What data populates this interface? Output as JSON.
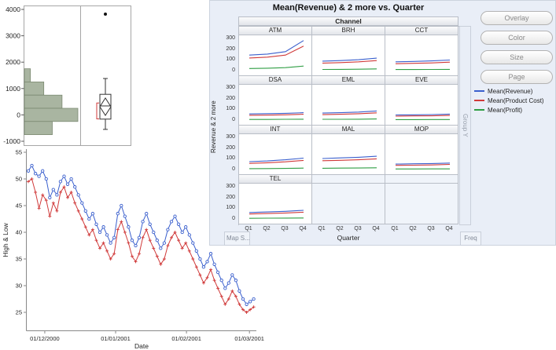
{
  "builder": {
    "buttons": [
      "Overlay",
      "Color",
      "Size",
      "Page"
    ],
    "group_y_label": "Group Y",
    "freq_label": "Freq",
    "map_shape_label": "Map S...",
    "background": "#e9eef7"
  },
  "chart_data": [
    {
      "id": "distribution-histogram-boxplot",
      "type": "bar",
      "orientation": "horizontal-histogram",
      "ylim": [
        -1000,
        4000
      ],
      "yticks": [
        4000,
        3000,
        2000,
        1000,
        0,
        -1000
      ],
      "bar_color": "#a9b5a1",
      "bar_border": "#78866e",
      "bins": [
        {
          "lo": 1250,
          "hi": 1750,
          "count": 10
        },
        {
          "lo": 750,
          "hi": 1250,
          "count": 32
        },
        {
          "lo": 250,
          "hi": 750,
          "count": 62
        },
        {
          "lo": -250,
          "hi": 250,
          "count": 88
        },
        {
          "lo": -750,
          "hi": -250,
          "count": 46
        }
      ],
      "boxplot": {
        "outlier": 3820,
        "whisker_top": 1380,
        "q3": 780,
        "median": 340,
        "diamond_mean": 310,
        "diamond_half": 330,
        "q1": -160,
        "whisker_bottom": -550,
        "shortest_half_bracket": {
          "top": 450,
          "bottom": -150,
          "color": "#d03a3a"
        }
      }
    },
    {
      "id": "high-low-time-series",
      "type": "line",
      "xlabel": "Date",
      "ylabel": "High & Low",
      "yticks": [
        55,
        50,
        45,
        40,
        35,
        30,
        25
      ],
      "ylim": [
        24,
        56
      ],
      "xticks": [
        {
          "label": "01/12/2000",
          "index": 4.6
        },
        {
          "label": "01/01/2001",
          "index": 24.4
        },
        {
          "label": "01/02/2001",
          "index": 44.2
        },
        {
          "label": "01/03/2001",
          "index": 61.8
        }
      ],
      "series": [
        {
          "name": "High",
          "color": "#3a5fcd",
          "marker": "circle",
          "values": [
            51.5,
            52.5,
            51.0,
            50.5,
            51.5,
            50.0,
            46.5,
            48.0,
            47.0,
            49.5,
            50.5,
            49.0,
            50.0,
            48.5,
            47.0,
            45.5,
            44.0,
            42.5,
            43.5,
            41.5,
            40.0,
            41.0,
            39.5,
            38.0,
            39.0,
            43.5,
            45.0,
            43.0,
            41.0,
            38.5,
            37.5,
            39.0,
            42.0,
            43.5,
            41.5,
            40.0,
            38.5,
            37.0,
            38.0,
            40.5,
            42.0,
            43.0,
            41.5,
            40.0,
            41.0,
            39.5,
            38.0,
            36.5,
            35.0,
            33.5,
            34.5,
            36.0,
            34.0,
            32.5,
            31.0,
            29.5,
            30.5,
            32.0,
            31.0,
            29.0,
            27.5,
            26.5,
            27.0,
            27.5
          ]
        },
        {
          "name": "Low",
          "color": "#d03a3a",
          "marker": "plus",
          "values": [
            49.5,
            50.0,
            47.5,
            44.5,
            47.0,
            46.0,
            43.0,
            45.5,
            44.0,
            47.5,
            48.5,
            46.5,
            47.5,
            45.5,
            44.0,
            42.5,
            41.0,
            39.5,
            40.5,
            38.5,
            37.0,
            38.0,
            36.5,
            35.0,
            36.0,
            40.5,
            42.0,
            40.0,
            38.0,
            35.5,
            34.5,
            36.0,
            39.0,
            40.5,
            38.5,
            37.0,
            35.5,
            34.0,
            35.0,
            37.5,
            39.0,
            40.0,
            38.5,
            37.0,
            38.0,
            36.5,
            35.0,
            33.5,
            32.0,
            30.5,
            31.5,
            33.0,
            31.0,
            29.5,
            28.0,
            26.5,
            27.5,
            29.0,
            28.0,
            26.5,
            25.5,
            25.0,
            25.5,
            26.0
          ]
        }
      ]
    },
    {
      "id": "trellis-means-by-quarter",
      "type": "line",
      "title": "Mean(Revenue) & 2 more vs. Quarter",
      "group_label": "Channel",
      "xlabel": "Quarter",
      "ylabel": "Revenue & 2 more",
      "categories": [
        "Q1",
        "Q2",
        "Q3",
        "Q4"
      ],
      "yticks": [
        300,
        200,
        100,
        0
      ],
      "ylim": [
        -40,
        340
      ],
      "legend": [
        {
          "label": "Mean(Revenue)",
          "color": "#3a5fcd"
        },
        {
          "label": "Mean(Product Cost)",
          "color": "#d03a3a"
        },
        {
          "label": "Mean(Profit)",
          "color": "#2f9e44"
        }
      ],
      "panels": [
        {
          "channel": "ATM",
          "series": [
            [
              152,
              162,
              185,
              290
            ],
            [
              125,
              133,
              152,
              238
            ],
            [
              25,
              28,
              33,
              48
            ]
          ]
        },
        {
          "channel": "BRH",
          "series": [
            [
              95,
              100,
              108,
              123
            ],
            [
              76,
              81,
              88,
              100
            ],
            [
              16,
              17,
              18,
              21
            ]
          ]
        },
        {
          "channel": "CCT",
          "series": [
            [
              88,
              92,
              97,
              105
            ],
            [
              70,
              74,
              78,
              85
            ],
            [
              15,
              15,
              16,
              17
            ]
          ]
        },
        {
          "channel": "DSA",
          "series": [
            [
              63,
              66,
              69,
              75
            ],
            [
              50,
              52,
              55,
              60
            ],
            [
              11,
              11,
              12,
              13
            ]
          ]
        },
        {
          "channel": "EML",
          "series": [
            [
              71,
              75,
              81,
              91
            ],
            [
              56,
              60,
              65,
              73
            ],
            [
              12,
              12,
              13,
              15
            ]
          ]
        },
        {
          "channel": "EVE",
          "series": [
            [
              53,
              55,
              57,
              61
            ],
            [
              42,
              44,
              45,
              49
            ],
            [
              9,
              9,
              10,
              10
            ]
          ]
        },
        {
          "channel": "INT",
          "series": [
            [
              79,
              86,
              97,
              113
            ],
            [
              63,
              69,
              78,
              91
            ],
            [
              13,
              14,
              15,
              18
            ]
          ]
        },
        {
          "channel": "MAL",
          "series": [
            [
              109,
              115,
              121,
              131
            ],
            [
              88,
              92,
              97,
              106
            ],
            [
              17,
              18,
              19,
              21
            ]
          ]
        },
        {
          "channel": "MOP",
          "series": [
            [
              56,
              59,
              61,
              66
            ],
            [
              44,
              46,
              48,
              53
            ],
            [
              10,
              10,
              11,
              11
            ]
          ]
        },
        {
          "channel": "TEL",
          "series": [
            [
              66,
              71,
              77,
              87
            ],
            [
              52,
              56,
              61,
              69
            ],
            [
              11,
              12,
              13,
              14
            ]
          ]
        }
      ]
    }
  ]
}
